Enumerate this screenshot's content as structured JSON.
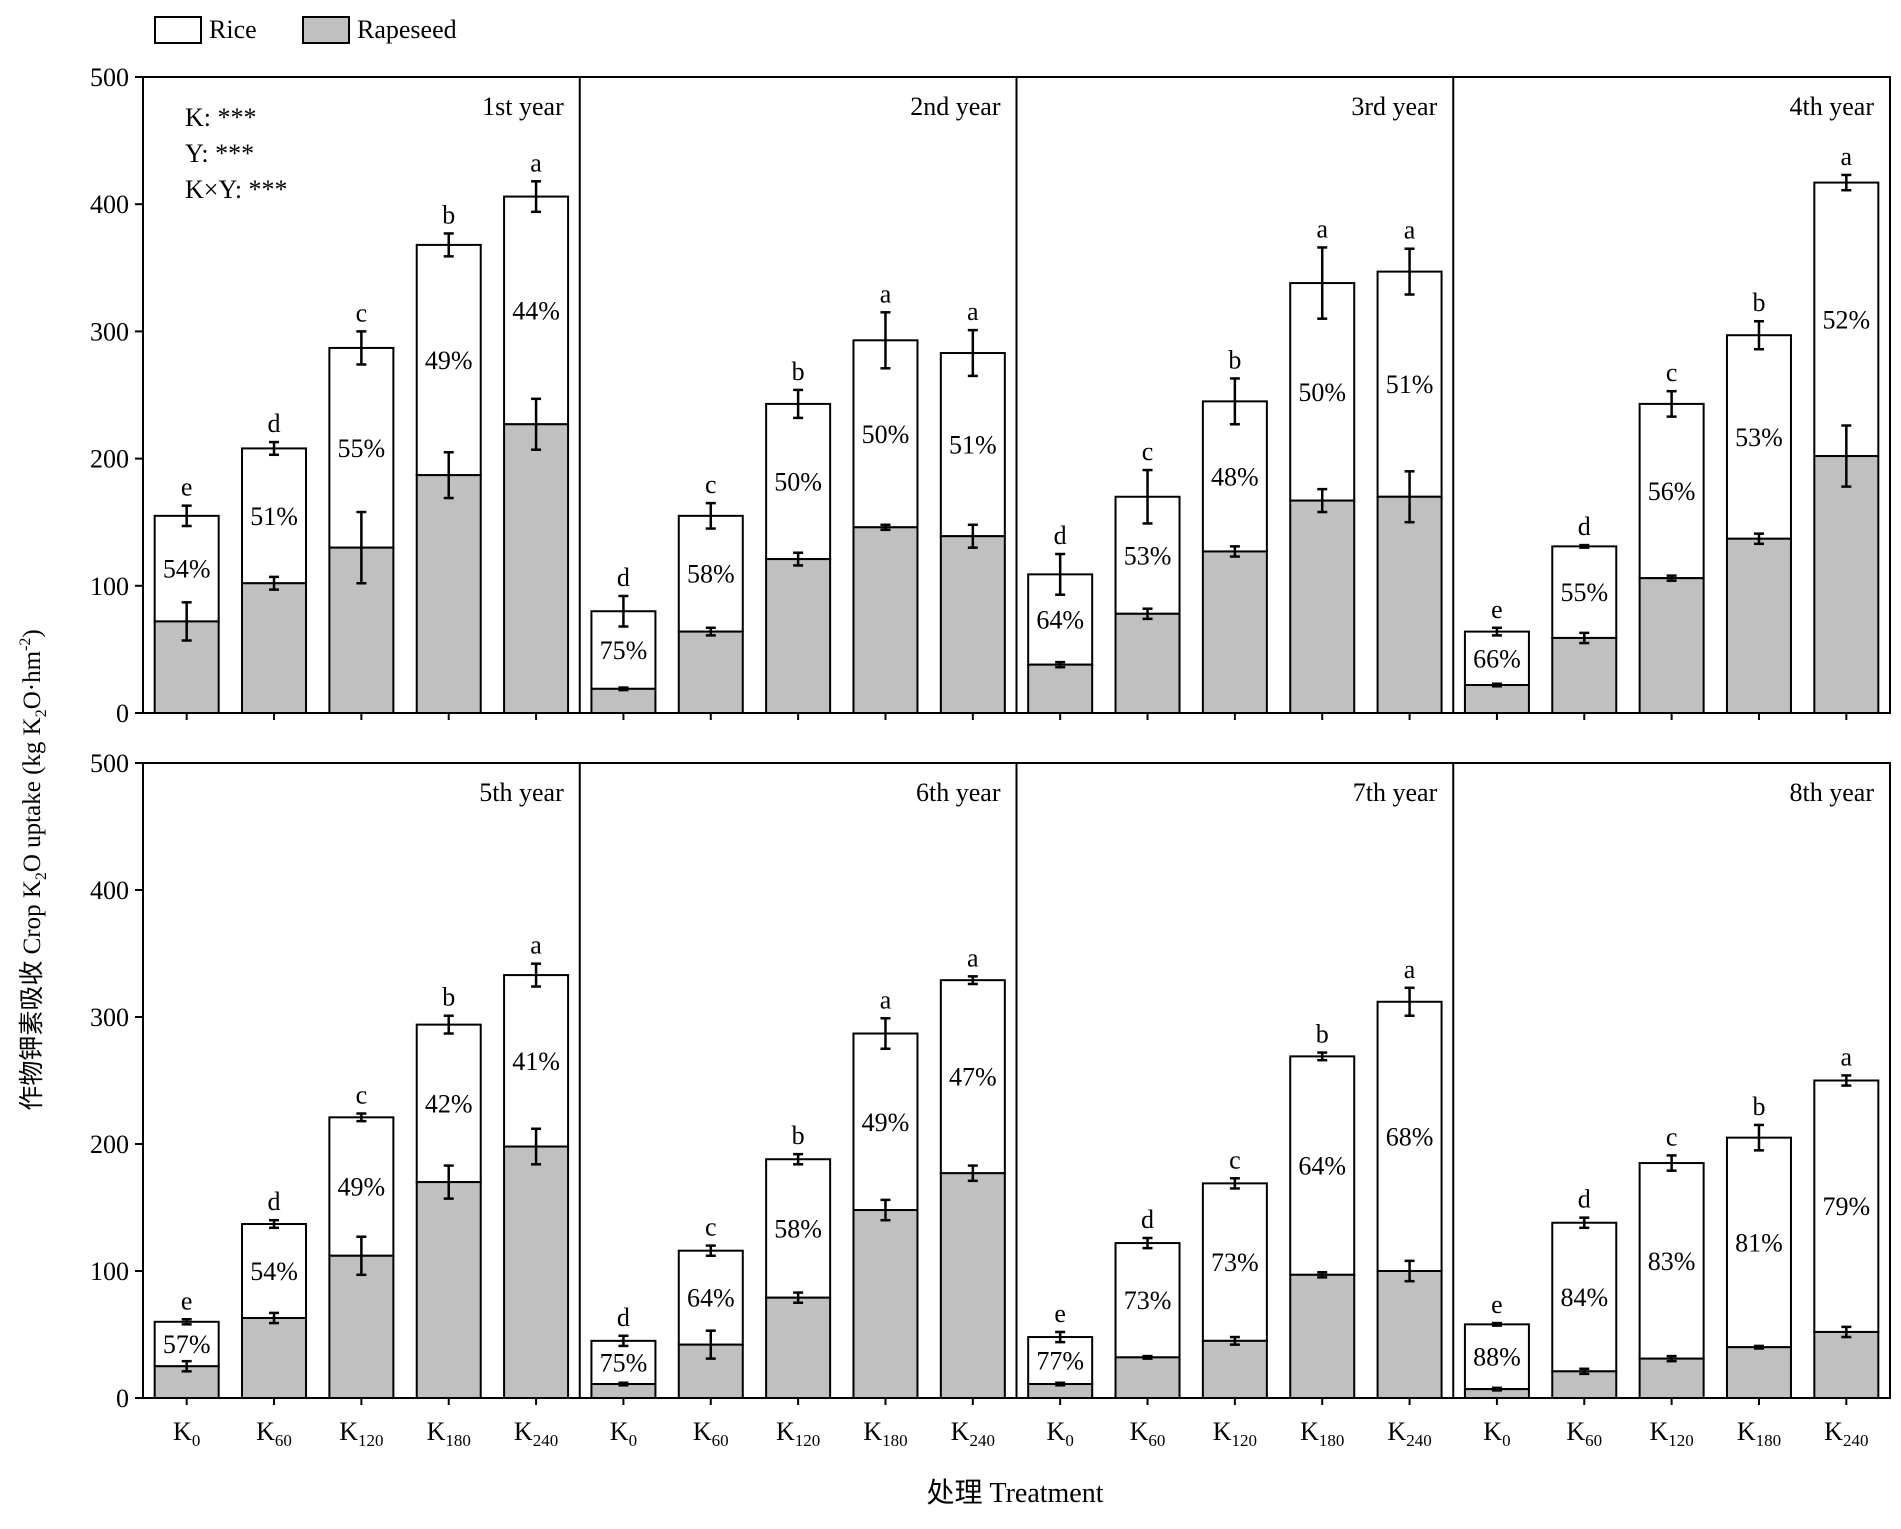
{
  "chart_data": {
    "type": "bar",
    "stacked": true,
    "ylabel_prefix": "作物钾素吸收 Crop K",
    "ylabel_sub": "2",
    "ylabel_mid": "O uptake (kg K",
    "ylabel_sub2": "2",
    "ylabel_mid2": "O·hm",
    "ylabel_sup": "-2",
    "ylabel_end": ")",
    "xlabel": "处理 Treatment",
    "ylim": [
      0,
      500
    ],
    "yticks": [
      "0",
      "100",
      "200",
      "300",
      "400",
      "500"
    ],
    "legend": [
      {
        "name": "Rice",
        "color": "#ffffff"
      },
      {
        "name": "Rapeseed",
        "color": "#c0c0c0"
      }
    ],
    "categories": [
      {
        "base": "K",
        "sub": "0"
      },
      {
        "base": "K",
        "sub": "60"
      },
      {
        "base": "K",
        "sub": "120"
      },
      {
        "base": "K",
        "sub": "180"
      },
      {
        "base": "K",
        "sub": "240"
      }
    ],
    "stats_text": [
      "K: ***",
      "Y: ***",
      "K×Y: ***"
    ],
    "panels": [
      {
        "title": "1st year",
        "rapeseed": [
          72,
          102,
          130,
          187,
          227
        ],
        "rapeseed_err": [
          15,
          5,
          28,
          18,
          20
        ],
        "total": [
          155,
          208,
          287,
          368,
          406
        ],
        "total_err": [
          8,
          5,
          13,
          9,
          12
        ],
        "letters": [
          "e",
          "d",
          "c",
          "b",
          "a"
        ],
        "pct": [
          "54%",
          "51%",
          "55%",
          "49%",
          "44%"
        ]
      },
      {
        "title": "2nd year",
        "rapeseed": [
          19,
          64,
          121,
          146,
          139
        ],
        "rapeseed_err": [
          1,
          3,
          5,
          2,
          9
        ],
        "total": [
          80,
          155,
          243,
          293,
          283
        ],
        "total_err": [
          12,
          10,
          11,
          22,
          18
        ],
        "letters": [
          "d",
          "c",
          "b",
          "a",
          "a"
        ],
        "pct": [
          "75%",
          "58%",
          "50%",
          "50%",
          "51%"
        ]
      },
      {
        "title": "3rd year",
        "rapeseed": [
          38,
          78,
          127,
          167,
          170
        ],
        "rapeseed_err": [
          2,
          4,
          4,
          9,
          20
        ],
        "total": [
          109,
          170,
          245,
          338,
          347
        ],
        "total_err": [
          16,
          21,
          18,
          28,
          18
        ],
        "letters": [
          "d",
          "c",
          "b",
          "a",
          "a"
        ],
        "pct": [
          "64%",
          "53%",
          "48%",
          "50%",
          "51%"
        ]
      },
      {
        "title": "4th year",
        "rapeseed": [
          22,
          59,
          106,
          137,
          202
        ],
        "rapeseed_err": [
          1,
          4,
          2,
          4,
          24
        ],
        "total": [
          64,
          131,
          243,
          297,
          417
        ],
        "total_err": [
          3,
          1,
          10,
          11,
          6
        ],
        "letters": [
          "e",
          "d",
          "c",
          "b",
          "a"
        ],
        "pct": [
          "66%",
          "55%",
          "56%",
          "53%",
          "52%"
        ]
      },
      {
        "title": "5th year",
        "rapeseed": [
          25,
          63,
          112,
          170,
          198
        ],
        "rapeseed_err": [
          4,
          4,
          15,
          13,
          14
        ],
        "total": [
          60,
          137,
          221,
          294,
          333
        ],
        "total_err": [
          2,
          3,
          3,
          7,
          9
        ],
        "letters": [
          "e",
          "d",
          "c",
          "b",
          "a"
        ],
        "pct": [
          "57%",
          "54%",
          "49%",
          "42%",
          "41%"
        ]
      },
      {
        "title": "6th year",
        "rapeseed": [
          11,
          42,
          79,
          148,
          177
        ],
        "rapeseed_err": [
          1,
          11,
          4,
          8,
          6
        ],
        "total": [
          45,
          116,
          188,
          287,
          329
        ],
        "total_err": [
          4,
          4,
          4,
          12,
          3
        ],
        "letters": [
          "d",
          "c",
          "b",
          "a",
          "a"
        ],
        "pct": [
          "75%",
          "64%",
          "58%",
          "49%",
          "47%"
        ]
      },
      {
        "title": "7th year",
        "rapeseed": [
          11,
          32,
          45,
          97,
          100
        ],
        "rapeseed_err": [
          1,
          1,
          3,
          2,
          8
        ],
        "total": [
          48,
          122,
          169,
          269,
          312
        ],
        "total_err": [
          4,
          4,
          4,
          3,
          11
        ],
        "letters": [
          "e",
          "d",
          "c",
          "b",
          "a"
        ],
        "pct": [
          "77%",
          "73%",
          "73%",
          "64%",
          "68%"
        ]
      },
      {
        "title": "8th year",
        "rapeseed": [
          7,
          21,
          31,
          40,
          52
        ],
        "rapeseed_err": [
          1,
          2,
          2,
          1,
          4
        ],
        "total": [
          58,
          138,
          185,
          205,
          250
        ],
        "total_err": [
          1,
          4,
          6,
          10,
          4
        ],
        "letters": [
          "e",
          "d",
          "c",
          "b",
          "a"
        ],
        "pct": [
          "88%",
          "84%",
          "83%",
          "81%",
          "79%"
        ]
      }
    ]
  }
}
